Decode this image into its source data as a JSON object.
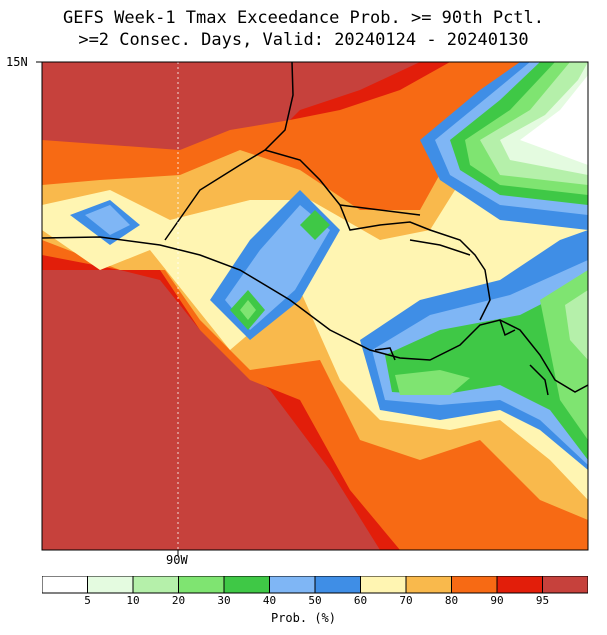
{
  "title": {
    "line1": "GEFS Week-1 Tmax Exceedance Prob. >= 90th Pctl.",
    "line2": ">=2 Consec. Days, Valid: 20240124 - 20240130"
  },
  "axes": {
    "lat_label": "15N",
    "lon_label": "90W"
  },
  "legend": {
    "title": "Prob. (%)",
    "ticks": [
      "5",
      "10",
      "20",
      "30",
      "40",
      "50",
      "60",
      "70",
      "80",
      "90",
      "95"
    ],
    "colors": [
      "#ffffff",
      "#e4fbe0",
      "#b5f0aa",
      "#7fe471",
      "#3fc846",
      "#7fb6f5",
      "#3f8ee6",
      "#fff5b2",
      "#f9b94c",
      "#f76a14",
      "#e21e0a",
      "#c6413c"
    ]
  },
  "map_colors": {
    "background": "#c6413c",
    "contours": [
      "#e21e0a",
      "#f76a14",
      "#f9b94c",
      "#fff5b2",
      "#3f8ee6",
      "#7fb6f5",
      "#3fc846",
      "#7fe471",
      "#b5f0aa",
      "#e4fbe0",
      "#ffffff"
    ],
    "coastline": "#000000"
  }
}
